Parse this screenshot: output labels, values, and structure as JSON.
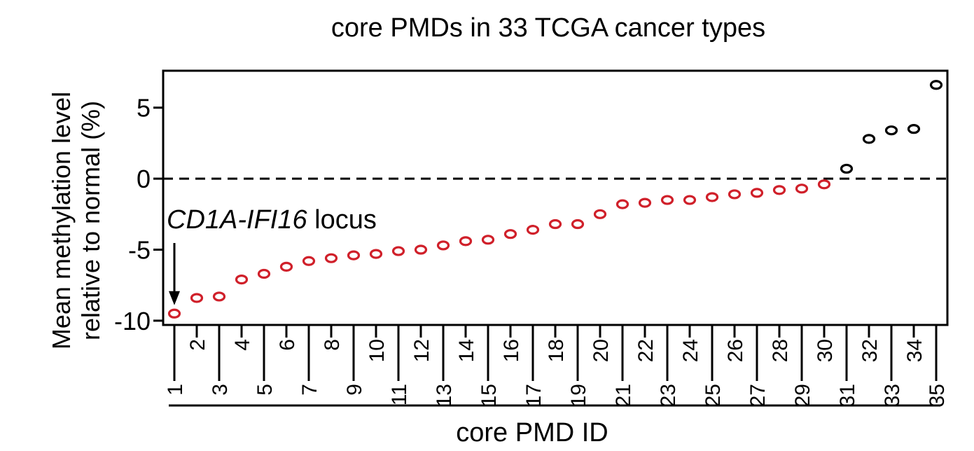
{
  "chart_data": {
    "type": "scatter",
    "title": "core PMDs in 33 TCGA cancer types",
    "xlabel": "core PMD ID",
    "ylabel_line1": "Mean methylation level",
    "ylabel_line2": "relative to normal (%)",
    "x": [
      1,
      2,
      3,
      4,
      5,
      6,
      7,
      8,
      9,
      10,
      11,
      12,
      13,
      14,
      15,
      16,
      17,
      18,
      19,
      20,
      21,
      22,
      23,
      24,
      25,
      26,
      27,
      28,
      29,
      30,
      31,
      32,
      33,
      34,
      35
    ],
    "y": [
      -9.5,
      -8.4,
      -8.3,
      -7.1,
      -6.7,
      -6.2,
      -5.8,
      -5.6,
      -5.4,
      -5.3,
      -5.1,
      -5.0,
      -4.7,
      -4.4,
      -4.3,
      -3.9,
      -3.6,
      -3.2,
      -3.2,
      -2.5,
      -1.8,
      -1.7,
      -1.5,
      -1.5,
      -1.3,
      -1.1,
      -1.0,
      -0.8,
      -0.7,
      -0.4,
      0.7,
      2.8,
      3.4,
      3.5,
      6.6
    ],
    "point_colors": [
      "#d0202a",
      "#d0202a",
      "#d0202a",
      "#d0202a",
      "#d0202a",
      "#d0202a",
      "#d0202a",
      "#d0202a",
      "#d0202a",
      "#d0202a",
      "#d0202a",
      "#d0202a",
      "#d0202a",
      "#d0202a",
      "#d0202a",
      "#d0202a",
      "#d0202a",
      "#d0202a",
      "#d0202a",
      "#d0202a",
      "#d0202a",
      "#d0202a",
      "#d0202a",
      "#d0202a",
      "#d0202a",
      "#d0202a",
      "#d0202a",
      "#d0202a",
      "#d0202a",
      "#d0202a",
      "#000000",
      "#000000",
      "#000000",
      "#000000",
      "#000000"
    ],
    "yticks": [
      -10,
      -5,
      0,
      5
    ],
    "ytick_labels": [
      "-10",
      "-5",
      "0",
      "5"
    ],
    "xtick_labels": [
      "1",
      "2",
      "3",
      "4",
      "5",
      "6",
      "7",
      "8",
      "9",
      "10",
      "11",
      "12",
      "13",
      "14",
      "15",
      "16",
      "17",
      "18",
      "19",
      "20",
      "21",
      "22",
      "23",
      "24",
      "25",
      "26",
      "27",
      "28",
      "29",
      "30",
      "31",
      "32",
      "33",
      "34",
      "35"
    ],
    "xlim": [
      0.5,
      35.5
    ],
    "ylim": [
      -10.3,
      7.6
    ],
    "reference_line": 0,
    "annotation": {
      "italic": "CD1A-IFI16",
      "rest": " locus",
      "target_x": 1
    },
    "grid": false
  }
}
